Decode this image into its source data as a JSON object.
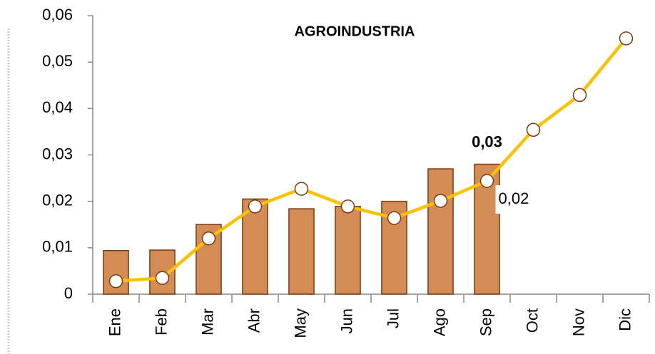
{
  "chart_data": {
    "type": "bar",
    "title": "AGROINDUSTRIA",
    "categories": [
      "Ene",
      "Feb",
      "Mar",
      "Abr",
      "May",
      "Jun",
      "Jul",
      "Ago",
      "Sep",
      "Oct",
      "Nov",
      "Dic"
    ],
    "series": [
      {
        "type": "bar",
        "color": "#d58b54",
        "values": [
          0.0094,
          0.0095,
          0.015,
          0.0205,
          0.0184,
          0.0189,
          0.02,
          0.027,
          0.028,
          null,
          null,
          null
        ],
        "value_labels": [
          null,
          null,
          null,
          null,
          null,
          null,
          null,
          null,
          "0,03",
          null,
          null,
          null
        ]
      },
      {
        "type": "line",
        "color": "#ffc000",
        "values": [
          0.0028,
          0.0035,
          0.012,
          0.0189,
          0.0227,
          0.0189,
          0.0164,
          0.0201,
          0.0244,
          0.0354,
          0.0429,
          0.0551
        ],
        "value_labels": [
          null,
          null,
          null,
          null,
          null,
          null,
          null,
          null,
          "0,02",
          null,
          null,
          null
        ]
      }
    ],
    "ylim": [
      0,
      0.06
    ],
    "yticks": [
      0,
      {
        "value": 0.01,
        "label": "0,01"
      },
      {
        "value": 0.02,
        "label": "0,02"
      },
      {
        "value": 0.03,
        "label": "0,03"
      },
      {
        "value": 0.04,
        "label": "0,04"
      },
      {
        "value": 0.05,
        "label": "0,05"
      },
      {
        "value": 0.06,
        "label": "0,06"
      }
    ],
    "grid": false
  }
}
